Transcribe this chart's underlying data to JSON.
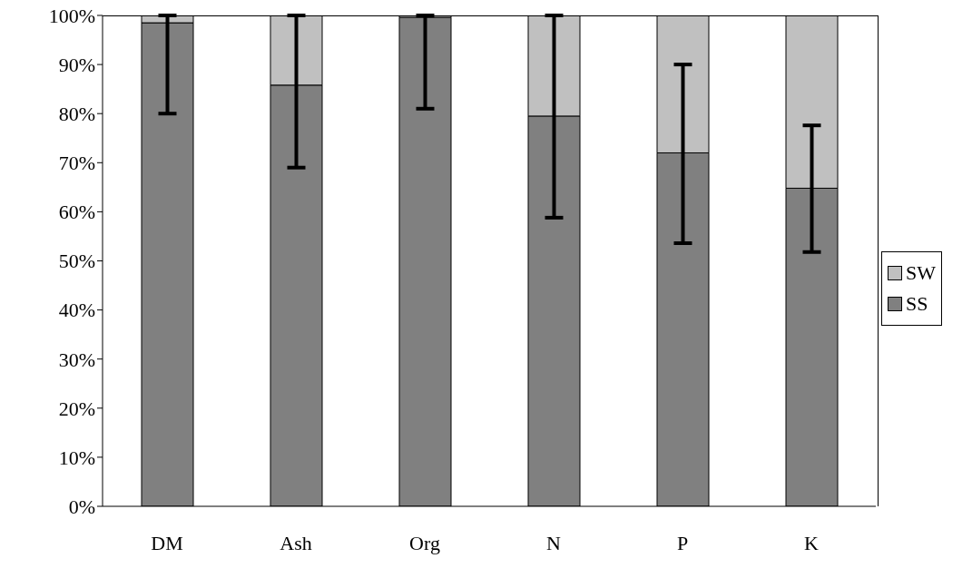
{
  "chart_data": {
    "type": "bar",
    "stacked": true,
    "categories": [
      "DM",
      "Ash",
      "Org",
      "N",
      "P",
      "K"
    ],
    "series": [
      {
        "name": "SS",
        "color": "#808080",
        "values": [
          98.5,
          85.8,
          99.6,
          79.5,
          72,
          64.8
        ],
        "errors": [
          [
            80,
            100
          ],
          [
            69,
            100
          ],
          [
            81,
            100
          ],
          [
            58.8,
            100
          ],
          [
            53.6,
            90
          ],
          [
            51.8,
            77.6
          ]
        ]
      },
      {
        "name": "SW",
        "color": "#c0c0c0",
        "values": [
          1.5,
          14.2,
          0.4,
          20.5,
          28,
          35.2
        ]
      }
    ],
    "ylim": [
      0,
      100
    ],
    "yticks": [
      {
        "value": 0,
        "label": "0%"
      },
      {
        "value": 10,
        "label": "10%"
      },
      {
        "value": 20,
        "label": "20%"
      },
      {
        "value": 30,
        "label": "30%"
      },
      {
        "value": 40,
        "label": "40%"
      },
      {
        "value": 50,
        "label": "50%"
      },
      {
        "value": 60,
        "label": "60%"
      },
      {
        "value": 70,
        "label": "70%"
      },
      {
        "value": 80,
        "label": "80%"
      },
      {
        "value": 90,
        "label": "90%"
      },
      {
        "value": 100,
        "label": "100%"
      }
    ],
    "grid": false,
    "legend": "right"
  }
}
